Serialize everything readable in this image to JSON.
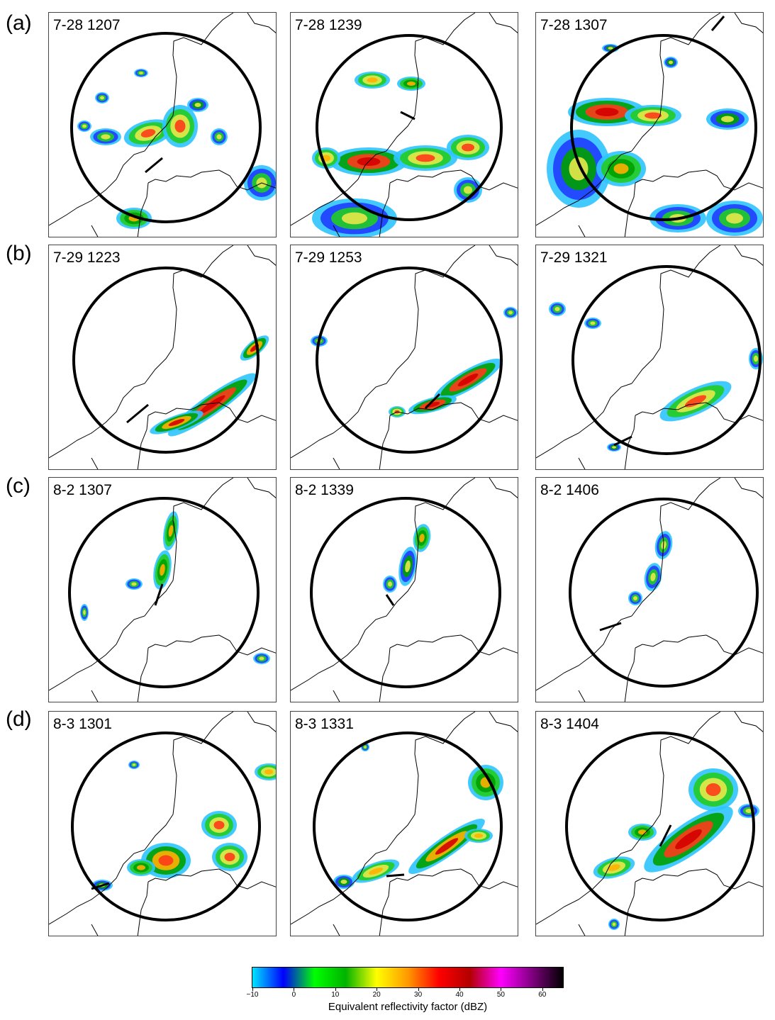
{
  "rows": [
    {
      "label": "(a)",
      "panels": [
        "7-28 1207",
        "7-28 1239",
        "7-28 1307"
      ]
    },
    {
      "label": "(b)",
      "panels": [
        "7-29 1223",
        "7-29 1253",
        "7-29 1321"
      ]
    },
    {
      "label": "(c)",
      "panels": [
        "8-2 1307",
        "8-2 1339",
        "8-2 1406"
      ]
    },
    {
      "label": "(d)",
      "panels": [
        "8-3 1301",
        "8-3 1331",
        "8-3 1404"
      ]
    }
  ],
  "colorbar": {
    "label": "Equivalent reflectivity factor (dBZ)",
    "ticks": [
      "−10",
      "0",
      "10",
      "20",
      "30",
      "40",
      "50",
      "60"
    ],
    "range": [
      -10,
      65
    ],
    "stops": [
      "#00e5ff",
      "#0000ff",
      "#00ff00",
      "#00b300",
      "#ffff00",
      "#ff9900",
      "#ff0000",
      "#b30000",
      "#ff00ff",
      "#800080",
      "#000000"
    ]
  }
}
